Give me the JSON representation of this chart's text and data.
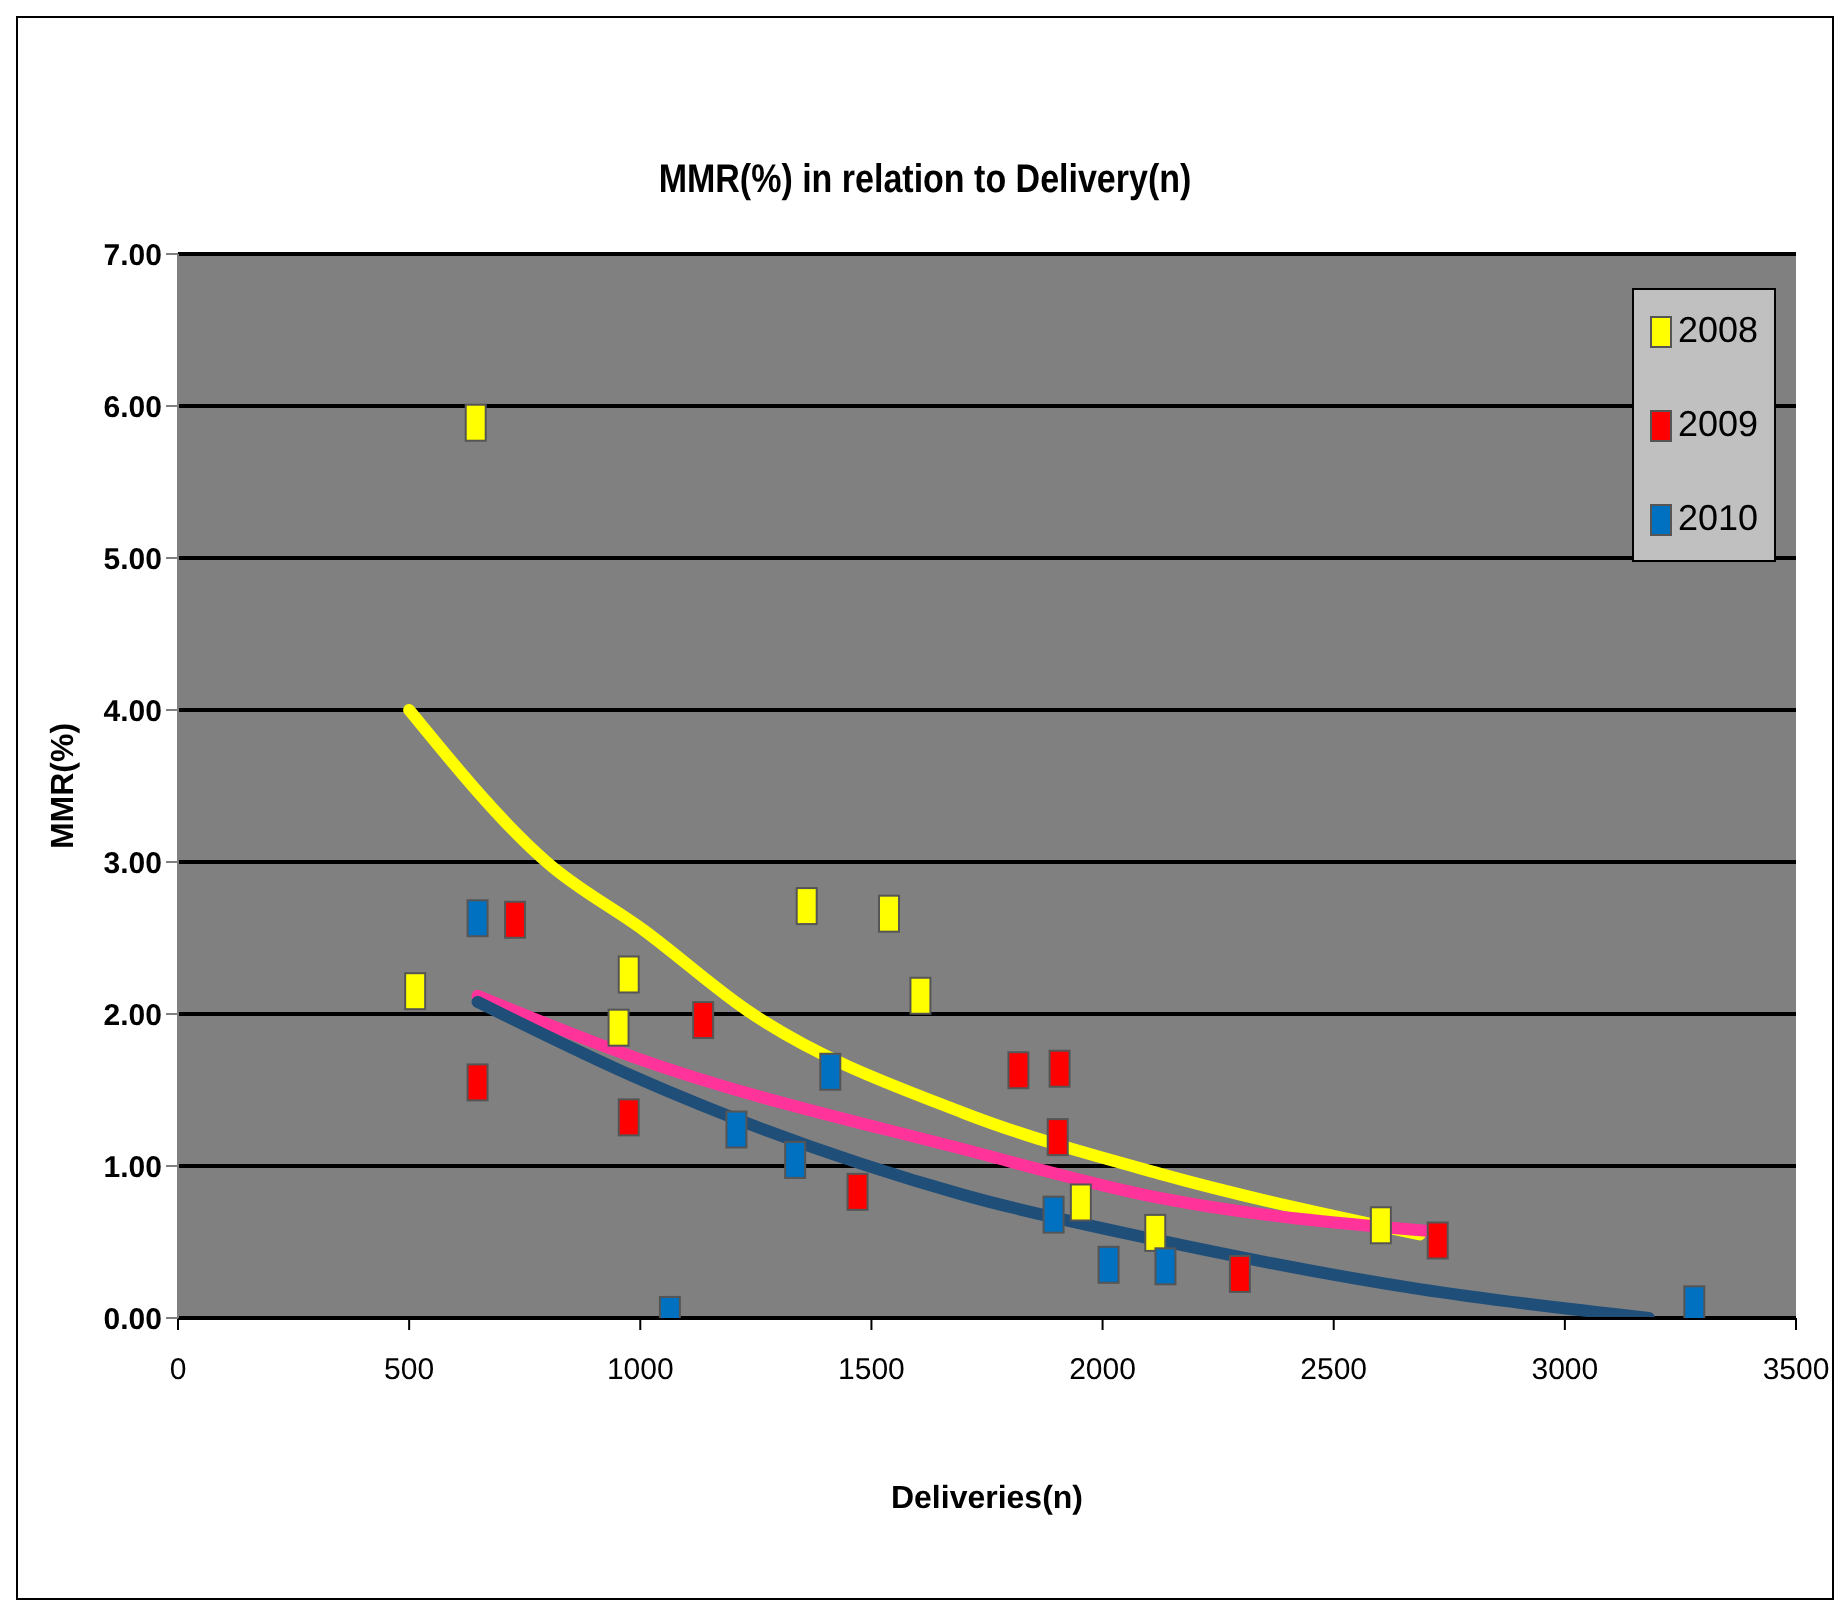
{
  "chart_data": {
    "type": "scatter",
    "title": "MMR(%) in relation to Delivery(n)",
    "xlabel": "Deliveries(n)",
    "ylabel": "MMR(%)",
    "xlim": [
      0,
      3500
    ],
    "xticks": [
      0,
      500,
      1000,
      1500,
      2000,
      2500,
      3000,
      3500
    ],
    "ylim": [
      0,
      7
    ],
    "yticks": [
      {
        "value": 0,
        "label": "0.00"
      },
      {
        "value": 1,
        "label": "1.00"
      },
      {
        "value": 2,
        "label": "2.00"
      },
      {
        "value": 3,
        "label": "3.00"
      },
      {
        "value": 4,
        "label": "4.00"
      },
      {
        "value": 5,
        "label": "5.00"
      },
      {
        "value": 6,
        "label": "6.00"
      },
      {
        "value": 7,
        "label": "7.00"
      }
    ],
    "grid": "y",
    "legend": "top right",
    "marker": "square",
    "series": [
      {
        "name": "2008",
        "color": "#ffff00",
        "x": [
          513,
          644,
          953,
          975,
          1360,
          1538,
          1606,
          1953,
          2114,
          2602
        ],
        "values": [
          2.15,
          5.89,
          1.91,
          2.26,
          2.71,
          2.66,
          2.12,
          0.76,
          0.56,
          0.61
        ]
      },
      {
        "name": "2009",
        "color": "#ff0000",
        "x": [
          648,
          729,
          975,
          1136,
          1470,
          1818,
          1903,
          1907,
          2297,
          2725
        ],
        "values": [
          1.55,
          2.62,
          1.32,
          1.96,
          0.83,
          1.63,
          1.19,
          1.64,
          0.29,
          0.51
        ]
      },
      {
        "name": "2010",
        "color": "#0070c0",
        "x": [
          648,
          1064,
          1208,
          1335,
          1411,
          1894,
          2013,
          2136,
          3280
        ],
        "values": [
          2.63,
          0.02,
          1.24,
          1.04,
          1.62,
          0.68,
          0.35,
          0.34,
          0.09
        ]
      },
      {
        "type": "line",
        "color": "#ffff00",
        "marker": "none",
        "x": [
          500,
          801,
          1008,
          1233,
          1699,
          2123,
          2686
        ],
        "values": [
          4.0,
          2.99,
          2.55,
          2.02,
          1.35,
          0.95,
          0.55
        ]
      },
      {
        "type": "line",
        "color": "#ff3399",
        "marker": "none",
        "x": [
          648,
          992,
          1699,
          2123,
          2716
        ],
        "values": [
          2.12,
          1.71,
          1.11,
          0.79,
          0.57
        ]
      },
      {
        "type": "line",
        "color": "#1f4e79",
        "marker": "none",
        "x": [
          648,
          992,
          1699,
          2123,
          2686,
          3182
        ],
        "values": [
          2.08,
          1.58,
          0.81,
          0.51,
          0.19,
          0
        ]
      }
    ]
  }
}
